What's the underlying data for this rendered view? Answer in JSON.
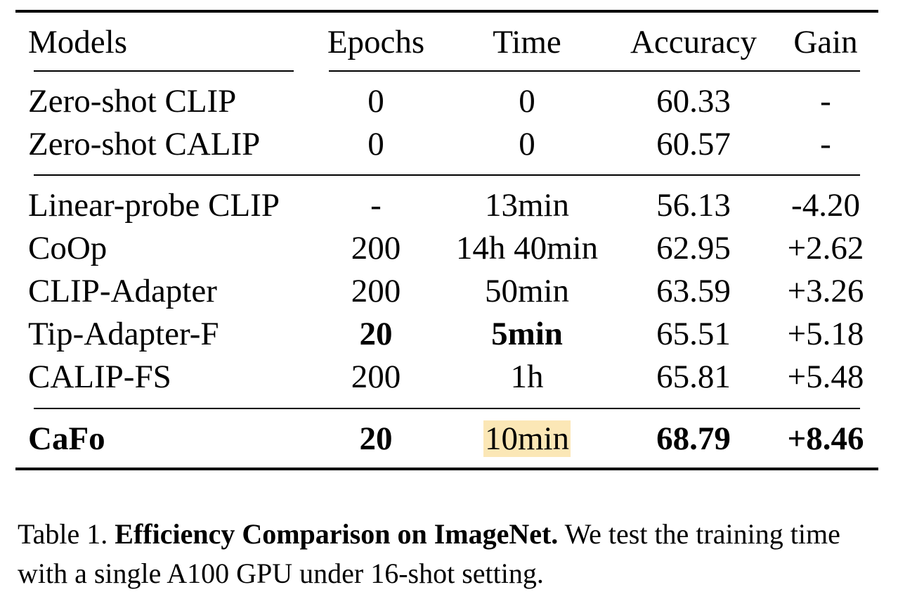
{
  "table": {
    "headers": [
      "Models",
      "Epochs",
      "Time",
      "Accuracy",
      "Gain"
    ],
    "rows": [
      {
        "model": "Zero-shot CLIP",
        "epochs": "0",
        "time": "0",
        "accuracy": "60.33",
        "gain": "-"
      },
      {
        "model": "Zero-shot CALIP",
        "epochs": "0",
        "time": "0",
        "accuracy": "60.57",
        "gain": "-"
      },
      {
        "model": "Linear-probe CLIP",
        "epochs": "-",
        "time": "13min",
        "accuracy": "56.13",
        "gain": "-4.20"
      },
      {
        "model": "CoOp",
        "epochs": "200",
        "time": "14h 40min",
        "accuracy": "62.95",
        "gain": "+2.62"
      },
      {
        "model": "CLIP-Adapter",
        "epochs": "200",
        "time": "50min",
        "accuracy": "63.59",
        "gain": "+3.26"
      },
      {
        "model": "Tip-Adapter-F",
        "epochs": "20",
        "time": "5min",
        "accuracy": "65.51",
        "gain": "+5.18",
        "bold_cells": [
          "epochs",
          "time"
        ]
      },
      {
        "model": "CALIP-FS",
        "epochs": "200",
        "time": "1h",
        "accuracy": "65.81",
        "gain": "+5.48"
      },
      {
        "model": "CaFo",
        "epochs": "20",
        "time": "10min",
        "accuracy": "68.79",
        "gain": "+8.46",
        "bold_cells": [
          "model",
          "epochs",
          "accuracy",
          "gain"
        ],
        "highlight_cells": [
          "time"
        ]
      }
    ],
    "highlight_color": "#fbe7b6"
  },
  "caption": {
    "label": "Table 1. ",
    "title": "Efficiency Comparison on ImageNet.",
    "text": " We test the training time with a single A100 GPU under 16-shot setting."
  }
}
